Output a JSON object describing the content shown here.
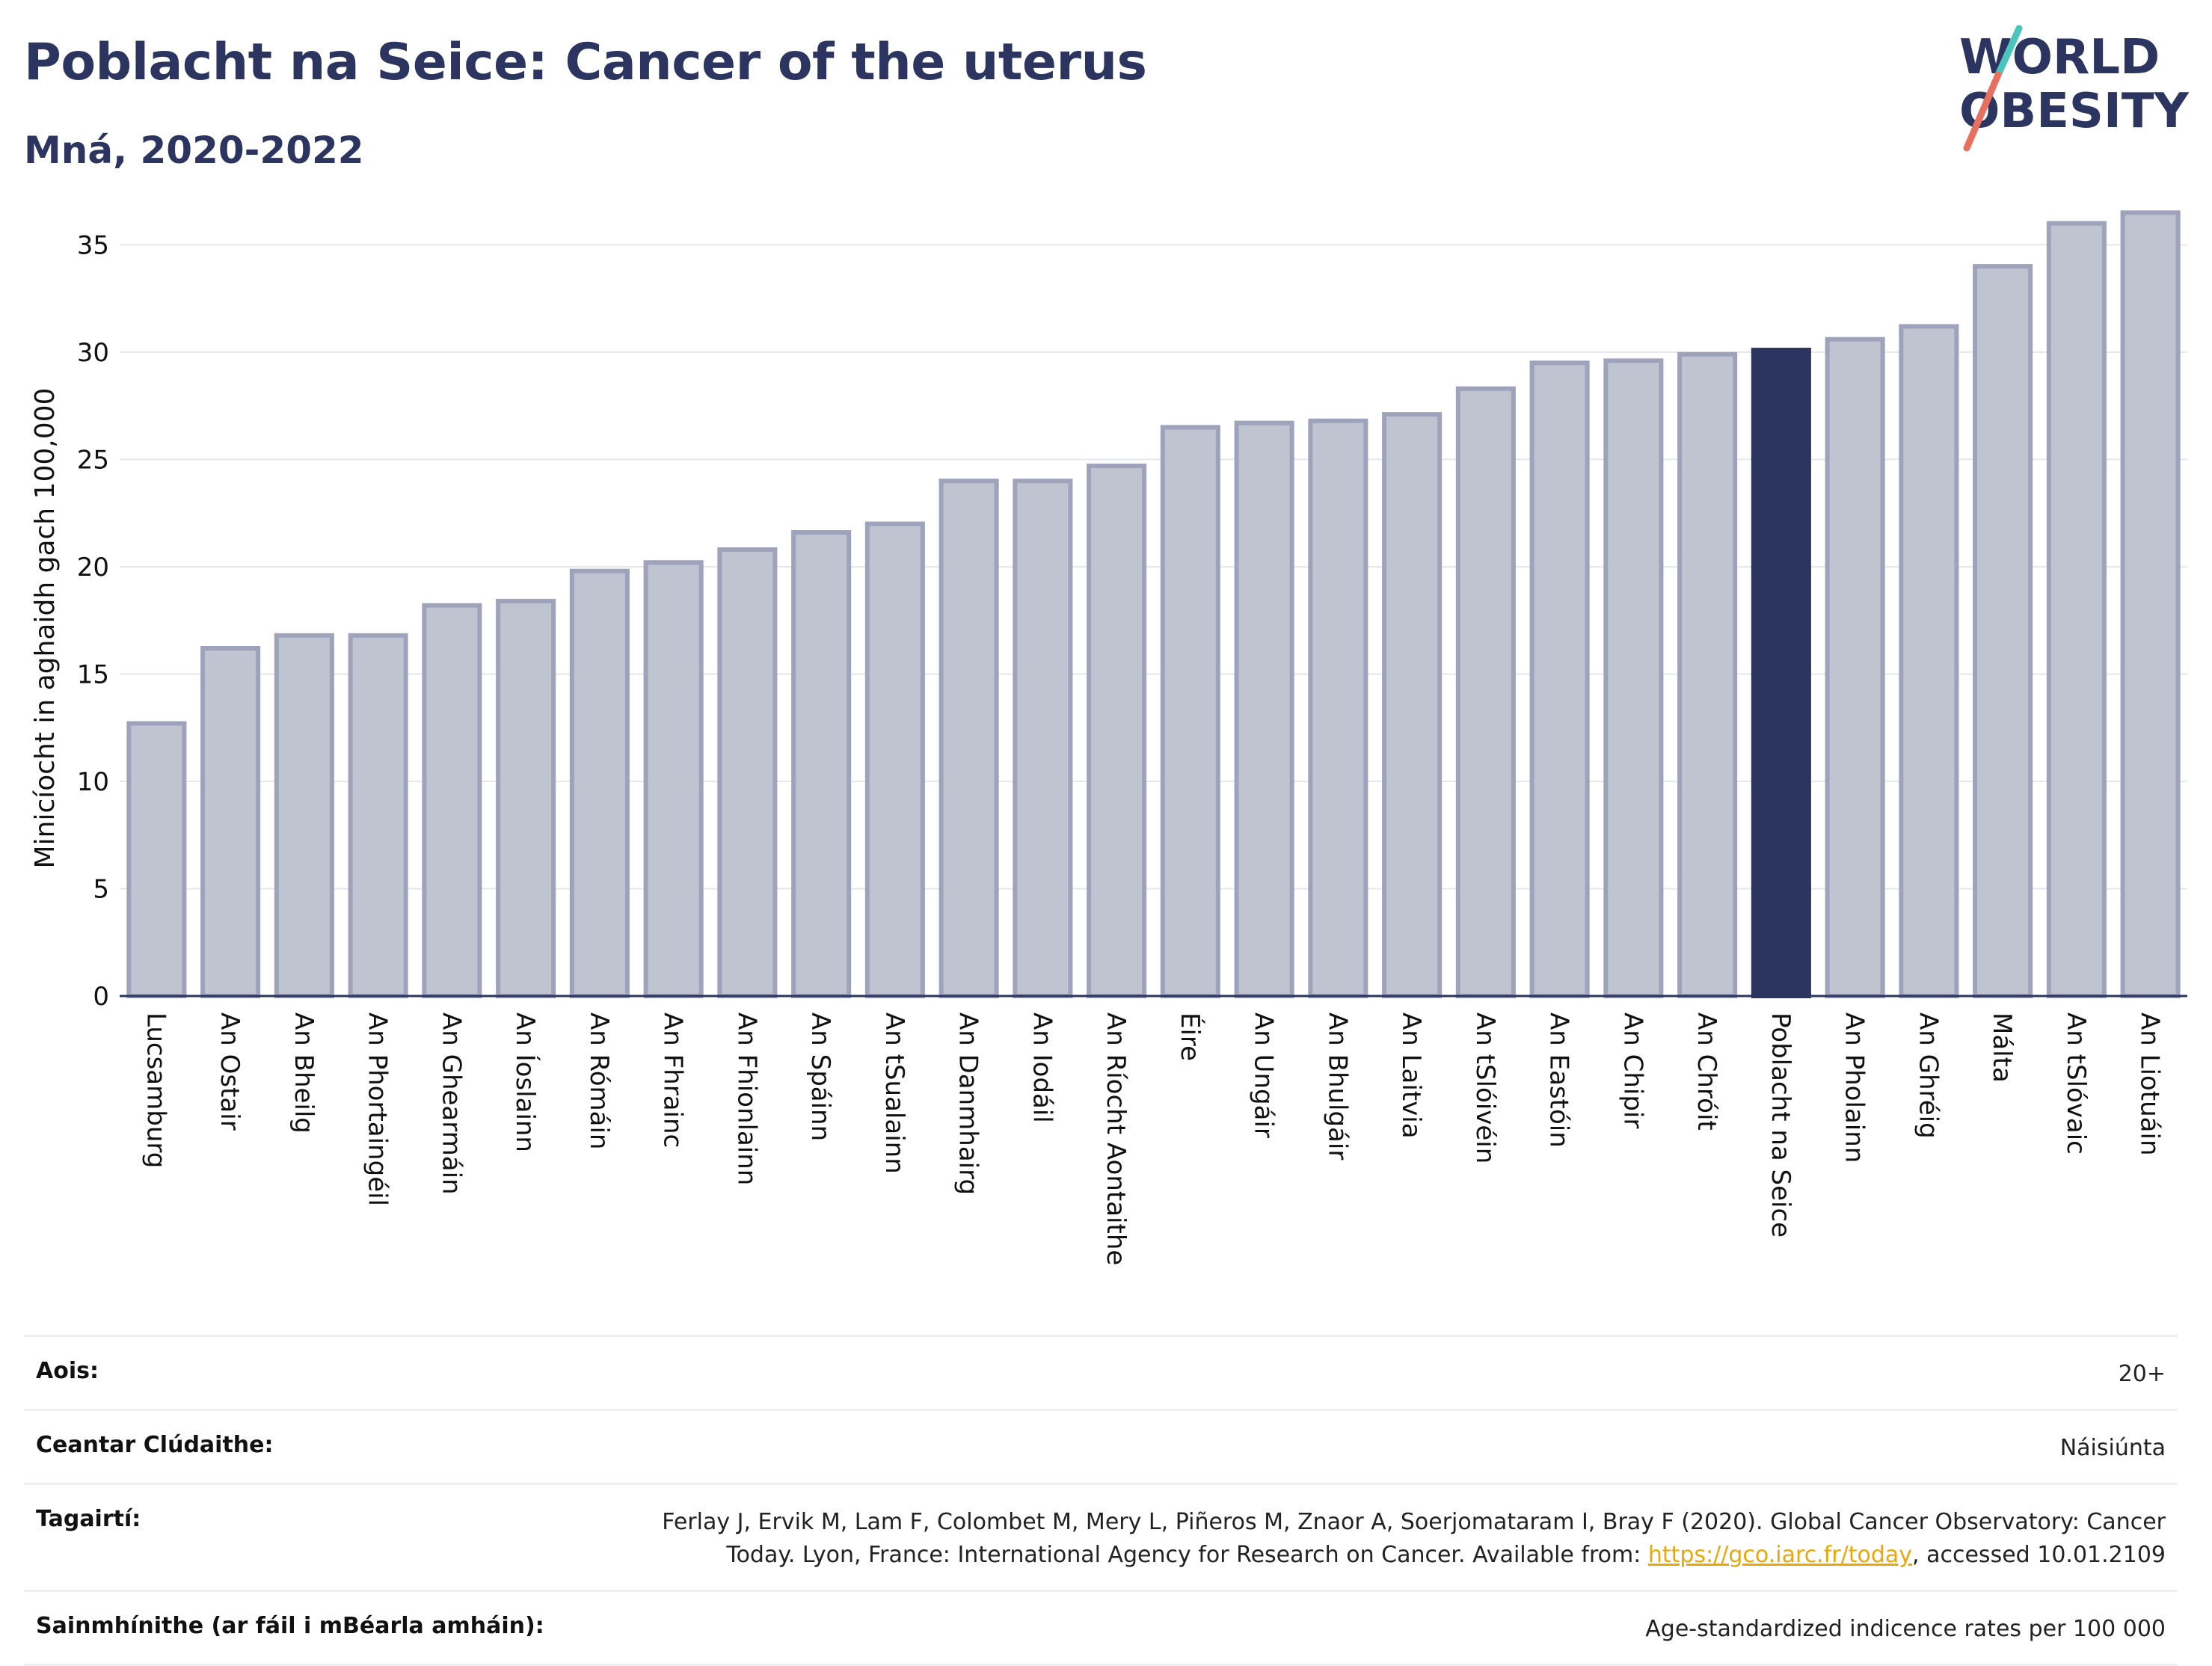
{
  "header": {
    "title": "Poblacht na Seice: Cancer of the uterus",
    "subtitle": "Mná, 2020-2022"
  },
  "logo": {
    "line1": "WORLD",
    "line2": "OBESITY"
  },
  "colors": {
    "accent": "#2b3560",
    "bar": "#c0c3d0",
    "bar_border": "#9ea3bb",
    "highlight": "#2b3560",
    "link": "#e8a80c"
  },
  "chart_data": {
    "type": "bar",
    "ylabel": "Minicíocht in aghaidh gach 100,000",
    "ylim": [
      0,
      37
    ],
    "yticks": [
      0,
      5,
      10,
      15,
      20,
      25,
      30,
      35
    ],
    "grid": true,
    "highlight": "Poblacht na Seice",
    "categories": [
      "Lucsamburg",
      "An Ostair",
      "An Bheilg",
      "An Phortaingéil",
      "An Ghearmáin",
      "An Íoslainn",
      "An Rómáin",
      "An Fhrainc",
      "An Fhionlainn",
      "An Spáinn",
      "An tSualainn",
      "An Danmhairg",
      "An Iodáil",
      "An Ríocht Aontaithe",
      "Éire",
      "An Ungáir",
      "An Bhulgáir",
      "An Laitvia",
      "An tSlóivéin",
      "An Eastóin",
      "An Chipir",
      "An Chróit",
      "Poblacht na Seice",
      "An Pholainn",
      "An Ghréig",
      "Málta",
      "An tSlóvaic",
      "An Liotuáin"
    ],
    "values": [
      12.7,
      16.2,
      16.8,
      16.8,
      18.2,
      18.4,
      19.8,
      20.2,
      20.8,
      21.6,
      22.0,
      24.0,
      24.0,
      24.7,
      26.5,
      26.7,
      26.8,
      27.1,
      28.3,
      29.5,
      29.6,
      29.9,
      30.1,
      30.6,
      31.2,
      34.0,
      36.0,
      36.5
    ]
  },
  "info": {
    "age_label": "Aois:",
    "age_value": "20+",
    "coverage_label": "Ceantar Clúdaithe:",
    "coverage_value": "Náisiúnta",
    "refs_label": "Tagairtí:",
    "refs_line1": "Ferlay J, Ervik M, Lam F, Colombet M, Mery L, Piñeros M, Znaor A, Soerjomataram I, Bray F (2020). Global Cancer Observatory: Cancer",
    "refs_line2_pre": "Today. Lyon, France: International Agency for Research on Cancer. Available from: ",
    "refs_link": "https://gco.iarc.fr/today",
    "refs_line2_post": ", accessed 10.01.2109",
    "defs_label": "Sainmhínithe (ar fáil i mBéarla amháin):",
    "defs_value": "Age-standardized indicence rates per 100 000"
  }
}
